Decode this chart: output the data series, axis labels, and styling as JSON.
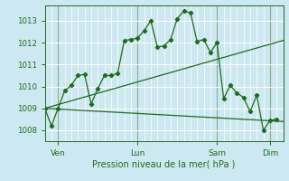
{
  "background_color": "#cde8f0",
  "grid_color": "#ffffff",
  "line_color": "#1e6b1e",
  "title": "Pression niveau de la mer( hPa )",
  "ylabel_ticks": [
    1008,
    1009,
    1010,
    1011,
    1012,
    1013
  ],
  "ylim": [
    1007.5,
    1013.7
  ],
  "x_tick_labels": [
    "Ven",
    "Lun",
    "Sam",
    "Dim"
  ],
  "x_tick_positions": [
    2,
    14,
    26,
    34
  ],
  "xlim": [
    0,
    36
  ],
  "series1_x": [
    0,
    1,
    2,
    3,
    4,
    5,
    6,
    7,
    8,
    9,
    10,
    11,
    12,
    13,
    14,
    15,
    16,
    17,
    18,
    19,
    20,
    21,
    22,
    23,
    24,
    25,
    26,
    27,
    28,
    29,
    30,
    31,
    32,
    33,
    34,
    35
  ],
  "series1_y": [
    1009.0,
    1008.2,
    1009.0,
    1009.8,
    1010.05,
    1010.5,
    1010.55,
    1009.2,
    1009.9,
    1010.5,
    1010.5,
    1010.6,
    1012.1,
    1012.15,
    1012.2,
    1012.55,
    1013.0,
    1011.8,
    1011.85,
    1012.15,
    1013.1,
    1013.45,
    1013.35,
    1012.05,
    1012.15,
    1011.55,
    1012.0,
    1009.45,
    1010.05,
    1009.7,
    1009.5,
    1008.85,
    1009.6,
    1008.0,
    1008.45,
    1008.5
  ],
  "series2_x": [
    0,
    36
  ],
  "series2_y": [
    1009.0,
    1012.1
  ],
  "series3_x": [
    0,
    36
  ],
  "series3_y": [
    1009.0,
    1008.4
  ],
  "marker": "D",
  "markersize": 2.2
}
